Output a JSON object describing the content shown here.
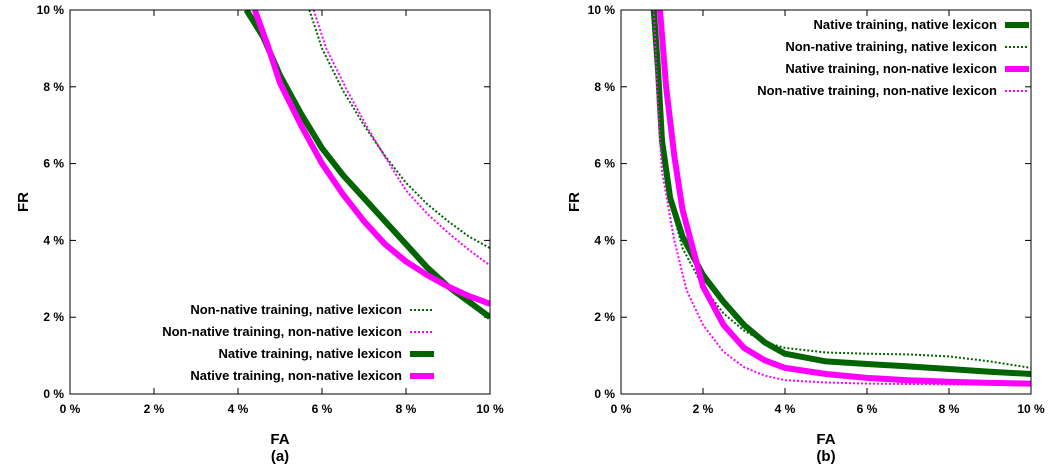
{
  "chart_data": [
    {
      "type": "line",
      "panel_label": "(a)",
      "xlabel": "FA",
      "ylabel": "FR",
      "xlim": [
        0,
        10
      ],
      "ylim": [
        0,
        10
      ],
      "x_ticks": [
        "0 %",
        "2 %",
        "4 %",
        "6 %",
        "8 %",
        "10 %"
      ],
      "y_ticks": [
        "0 %",
        "2 %",
        "4 %",
        "6 %",
        "8 %",
        "10 %"
      ],
      "legend_position": "bottom-right",
      "series": [
        {
          "name": "Non-native training, native lexicon",
          "color": "#006400",
          "style": "dotted-thin",
          "points": [
            [
              5.7,
              10
            ],
            [
              6.0,
              9.0
            ],
            [
              6.5,
              7.9
            ],
            [
              7.0,
              7.0
            ],
            [
              7.5,
              6.2
            ],
            [
              8.0,
              5.5
            ],
            [
              8.5,
              4.95
            ],
            [
              9.0,
              4.5
            ],
            [
              9.5,
              4.1
            ],
            [
              10,
              3.8
            ]
          ]
        },
        {
          "name": "Non-native training, non-native lexicon",
          "color": "#ff00ff",
          "style": "dotted-thin",
          "points": [
            [
              5.8,
              10
            ],
            [
              6.1,
              9.0
            ],
            [
              6.6,
              7.9
            ],
            [
              7.1,
              6.9
            ],
            [
              7.6,
              6.0
            ],
            [
              8.0,
              5.3
            ],
            [
              8.5,
              4.7
            ],
            [
              9.0,
              4.2
            ],
            [
              9.5,
              3.75
            ],
            [
              10,
              3.35
            ]
          ]
        },
        {
          "name": "Native training, native lexicon",
          "color": "#006400",
          "style": "thick",
          "points": [
            [
              4.2,
              10
            ],
            [
              4.6,
              9.3
            ],
            [
              5.0,
              8.3
            ],
            [
              5.5,
              7.3
            ],
            [
              6.0,
              6.4
            ],
            [
              6.5,
              5.7
            ],
            [
              7.0,
              5.1
            ],
            [
              7.5,
              4.5
            ],
            [
              8.0,
              3.9
            ],
            [
              8.5,
              3.3
            ],
            [
              9.0,
              2.8
            ],
            [
              9.5,
              2.4
            ],
            [
              10,
              2.0
            ]
          ]
        },
        {
          "name": "Native training, non-native lexicon",
          "color": "#ff00ff",
          "style": "thick",
          "points": [
            [
              4.4,
              10
            ],
            [
              4.7,
              9.1
            ],
            [
              5.0,
              8.1
            ],
            [
              5.5,
              7.0
            ],
            [
              6.0,
              6.0
            ],
            [
              6.5,
              5.2
            ],
            [
              7.0,
              4.5
            ],
            [
              7.5,
              3.9
            ],
            [
              8.0,
              3.45
            ],
            [
              8.5,
              3.1
            ],
            [
              9.0,
              2.8
            ],
            [
              9.5,
              2.55
            ],
            [
              10,
              2.35
            ]
          ]
        }
      ]
    },
    {
      "type": "line",
      "panel_label": "(b)",
      "xlabel": "FA",
      "ylabel": "FR",
      "xlim": [
        0,
        10
      ],
      "ylim": [
        0,
        10
      ],
      "x_ticks": [
        "0 %",
        "2 %",
        "4 %",
        "6 %",
        "8 %",
        "10 %"
      ],
      "y_ticks": [
        "0 %",
        "2 %",
        "4 %",
        "6 %",
        "8 %",
        "10 %"
      ],
      "legend_position": "top-right",
      "series": [
        {
          "name": "Native training, native lexicon",
          "color": "#006400",
          "style": "thick",
          "points": [
            [
              0.8,
              10
            ],
            [
              0.9,
              8.5
            ],
            [
              1.0,
              6.6
            ],
            [
              1.2,
              5.1
            ],
            [
              1.5,
              4.1
            ],
            [
              2.0,
              3.1
            ],
            [
              2.5,
              2.4
            ],
            [
              3.0,
              1.8
            ],
            [
              3.5,
              1.35
            ],
            [
              4.0,
              1.05
            ],
            [
              5.0,
              0.85
            ],
            [
              6.0,
              0.78
            ],
            [
              7.0,
              0.72
            ],
            [
              8.0,
              0.65
            ],
            [
              9.0,
              0.58
            ],
            [
              10,
              0.52
            ]
          ]
        },
        {
          "name": "Non-native training, native lexicon",
          "color": "#006400",
          "style": "dotted-thin",
          "points": [
            [
              0.75,
              10
            ],
            [
              0.85,
              8.5
            ],
            [
              1.0,
              6.5
            ],
            [
              1.2,
              5.0
            ],
            [
              1.5,
              3.8
            ],
            [
              2.0,
              2.8
            ],
            [
              2.5,
              2.1
            ],
            [
              3.0,
              1.65
            ],
            [
              3.5,
              1.35
            ],
            [
              4.0,
              1.2
            ],
            [
              5.0,
              1.08
            ],
            [
              6.0,
              1.05
            ],
            [
              7.0,
              1.03
            ],
            [
              8.0,
              0.98
            ],
            [
              9.0,
              0.85
            ],
            [
              10,
              0.68
            ]
          ]
        },
        {
          "name": "Native training, non-native lexicon",
          "color": "#ff00ff",
          "style": "thick",
          "points": [
            [
              0.95,
              10
            ],
            [
              1.1,
              8.0
            ],
            [
              1.3,
              6.2
            ],
            [
              1.5,
              4.8
            ],
            [
              1.8,
              3.6
            ],
            [
              2.0,
              2.8
            ],
            [
              2.5,
              1.8
            ],
            [
              3.0,
              1.2
            ],
            [
              3.5,
              0.88
            ],
            [
              4.0,
              0.68
            ],
            [
              5.0,
              0.52
            ],
            [
              6.0,
              0.42
            ],
            [
              7.0,
              0.36
            ],
            [
              8.0,
              0.32
            ],
            [
              9.0,
              0.29
            ],
            [
              10,
              0.27
            ]
          ]
        },
        {
          "name": "Non-native training, non-native lexicon",
          "color": "#ff00ff",
          "style": "dotted-thin",
          "points": [
            [
              0.8,
              10
            ],
            [
              0.9,
              7.5
            ],
            [
              1.0,
              5.8
            ],
            [
              1.3,
              4.0
            ],
            [
              1.6,
              2.7
            ],
            [
              2.0,
              1.8
            ],
            [
              2.5,
              1.1
            ],
            [
              3.0,
              0.7
            ],
            [
              3.5,
              0.48
            ],
            [
              4.0,
              0.36
            ],
            [
              5.0,
              0.3
            ],
            [
              6.0,
              0.27
            ],
            [
              7.0,
              0.26
            ],
            [
              8.0,
              0.25
            ],
            [
              9.0,
              0.25
            ],
            [
              10,
              0.24
            ]
          ]
        }
      ]
    }
  ]
}
